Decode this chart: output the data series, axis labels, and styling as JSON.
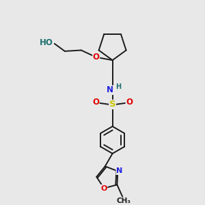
{
  "bg_color": "#e8e8e8",
  "bond_color": "#1a1a1a",
  "atom_colors": {
    "O": "#e00000",
    "N": "#2020e0",
    "S": "#c8c800",
    "H": "#207070",
    "C": "#1a1a1a"
  },
  "line_width": 1.4,
  "font_size": 8.5,
  "fig_size": [
    3.0,
    3.0
  ],
  "dpi": 100
}
